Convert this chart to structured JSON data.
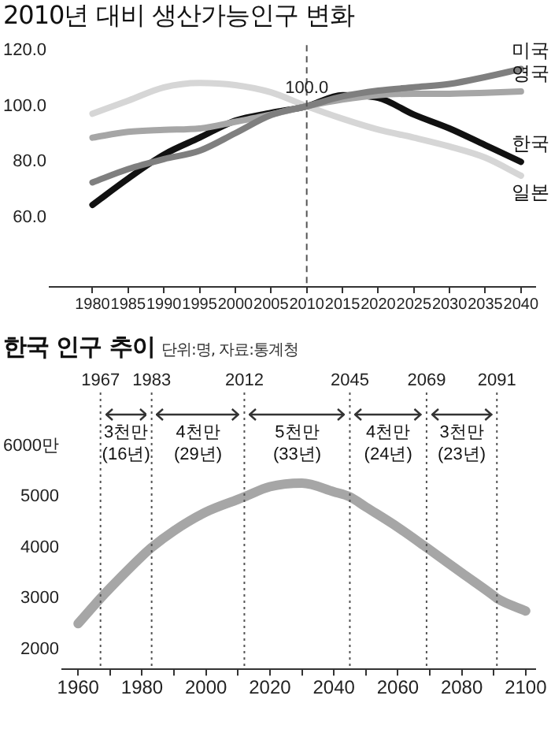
{
  "chart_data": [
    {
      "type": "line",
      "title": "2010년 대비 생산가능인구 변화",
      "x": [
        1980,
        1985,
        1990,
        1995,
        2000,
        2005,
        2010,
        2015,
        2020,
        2025,
        2030,
        2035,
        2040
      ],
      "series": [
        {
          "name": "미국",
          "color": "#7f7f7f",
          "values": [
            72.6,
            77.4,
            81,
            84,
            90.3,
            96.8,
            100,
            103.5,
            105.6,
            106.8,
            108,
            110.5,
            113.4
          ]
        },
        {
          "name": "영국",
          "color": "#a6a6a6",
          "values": [
            88.7,
            90.8,
            91.5,
            92,
            94.4,
            97,
            100,
            102.4,
            104,
            104.5,
            104.5,
            104.8,
            105.3
          ]
        },
        {
          "name": "한국",
          "color": "#111111",
          "values": [
            64.5,
            74,
            82.6,
            88.7,
            94.8,
            97.6,
            100,
            104,
            103,
            97,
            92,
            86,
            80
          ]
        },
        {
          "name": "일본",
          "color": "#d6d6d6",
          "values": [
            97.3,
            102,
            106.8,
            108.4,
            107.6,
            105,
            100,
            95.5,
            91.6,
            88.7,
            85.5,
            81.5,
            75
          ]
        }
      ],
      "xlim": [
        1974,
        2042
      ],
      "ylim": [
        35,
        122
      ],
      "xticks": [
        1980,
        1985,
        1990,
        1995,
        2000,
        2005,
        2010,
        2015,
        2020,
        2025,
        2030,
        2035,
        2040
      ],
      "yticks": [
        {
          "value": 60,
          "label": "60.0"
        },
        {
          "value": 80,
          "label": "80.0"
        },
        {
          "value": 100,
          "label": "100.0"
        },
        {
          "value": 120,
          "label": "120.0"
        }
      ],
      "ref_lines": [
        {
          "axis": "x",
          "value": 2010,
          "line_style": "dashed",
          "color": "#555555"
        }
      ],
      "annotations": [
        {
          "text": "100.0",
          "x": 2010,
          "y": 100
        }
      ]
    },
    {
      "type": "line",
      "title": "한국 인구 추이",
      "subtitle": "단위:명, 자료:통계청",
      "x": [
        1960,
        1967,
        1970,
        1980,
        1983,
        1990,
        2000,
        2010,
        2012,
        2020,
        2030,
        2040,
        2045,
        2050,
        2060,
        2069,
        2080,
        2090,
        2091,
        2100
      ],
      "series": [
        {
          "color": "#a6a6a6",
          "values": [
            2500,
            3000,
            3200,
            3830,
            4000,
            4330,
            4700,
            4950,
            5000,
            5200,
            5270,
            5100,
            5000,
            4800,
            4400,
            4000,
            3500,
            3050,
            3000,
            2750
          ]
        }
      ],
      "xlim": [
        1955,
        2103
      ],
      "ylim": [
        1600,
        6000
      ],
      "xticks": [
        1960,
        {
          "value": 1970,
          "label": null
        },
        1980,
        {
          "value": 1990,
          "label": null
        },
        2000,
        {
          "value": 2010,
          "label": null
        },
        2020,
        {
          "value": 2030,
          "label": null
        },
        2040,
        {
          "value": 2050,
          "label": null
        },
        2060,
        {
          "value": 2070,
          "label": null
        },
        2080,
        {
          "value": 2090,
          "label": null
        },
        2100
      ],
      "yticks": [
        2000,
        3000,
        4000,
        5000,
        {
          "value": 6000,
          "label": "6000만"
        }
      ],
      "ref_lines": [
        {
          "axis": "x",
          "value": 1967,
          "label": "1967",
          "line_style": "dotted",
          "color": "#555555"
        },
        {
          "axis": "x",
          "value": 1983,
          "label": "1983",
          "line_style": "dotted",
          "color": "#555555"
        },
        {
          "axis": "x",
          "value": 2012,
          "label": "2012",
          "line_style": "dotted",
          "color": "#555555"
        },
        {
          "axis": "x",
          "value": 2045,
          "label": "2045",
          "line_style": "dotted",
          "color": "#555555"
        },
        {
          "axis": "x",
          "value": 2069,
          "label": "2069",
          "line_style": "dotted",
          "color": "#555555"
        },
        {
          "axis": "x",
          "value": 2091,
          "label": "2091",
          "line_style": "dotted",
          "color": "#555555"
        }
      ],
      "annotations": [
        "3천만 (16년)",
        "4천만 (29년)",
        "5천만 (33년)",
        "4천만 (24년)",
        "3천만 (23년)"
      ]
    }
  ]
}
